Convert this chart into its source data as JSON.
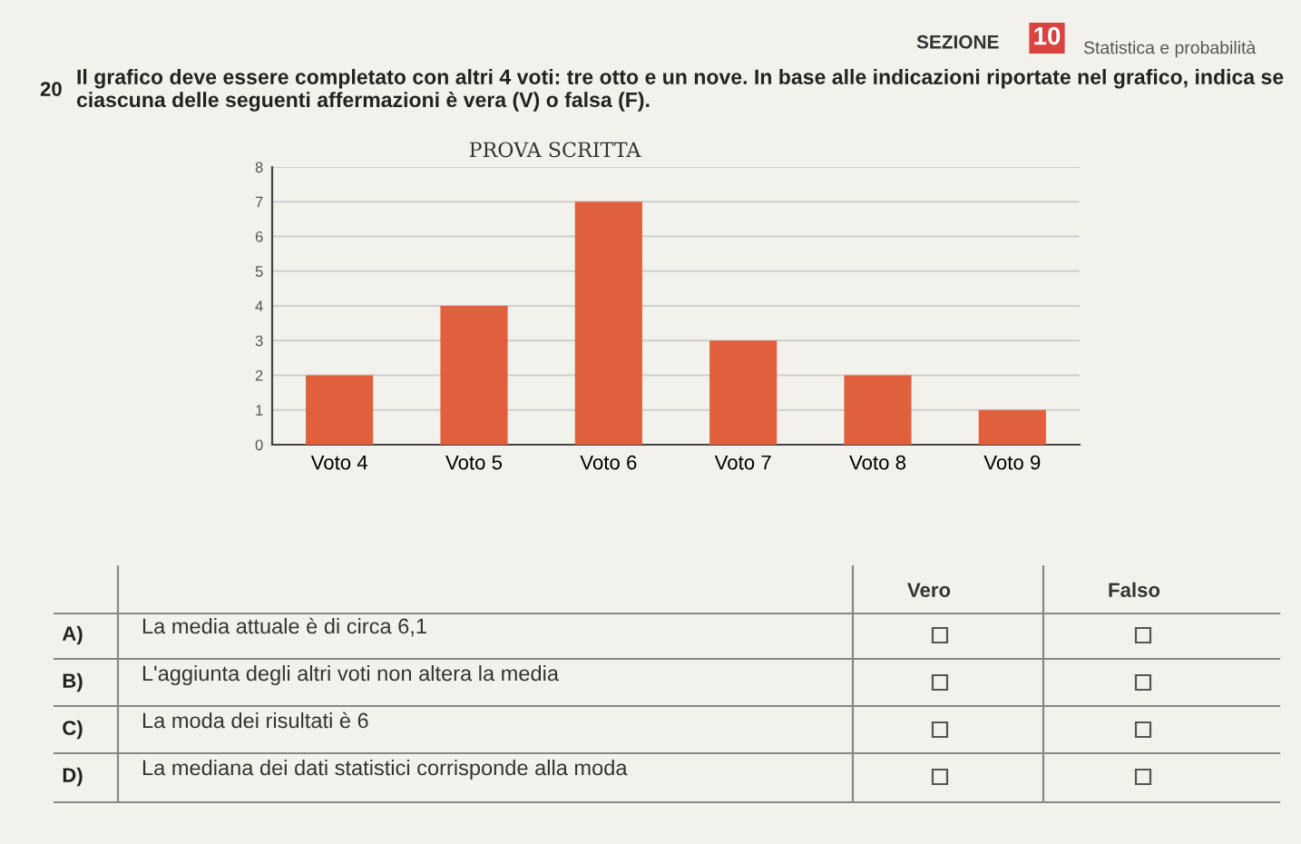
{
  "chart_data": {
    "type": "bar",
    "title": "PROVA SCRITTA",
    "categories": [
      "Voto 4",
      "Voto 5",
      "Voto 6",
      "Voto 7",
      "Voto 8",
      "Voto 9"
    ],
    "values": [
      2,
      4,
      7,
      3,
      2,
      1
    ],
    "color": "#e0603d",
    "ylim": [
      0,
      8
    ],
    "yticks": [
      0,
      1,
      2,
      3,
      4,
      5,
      6,
      7,
      8
    ],
    "grid": "y",
    "annotations": [
      "SEZIONE",
      "10",
      "Statistica e probabilità",
      "20",
      "Il grafico deve essere completato con altri 4 voti: tre otto e un nove. In base alle indicazioni riportate nel grafico, indica se ciascuna delle seguenti affermazioni è vera (V) o falsa (F).",
      "Vero",
      "Falso",
      "A)",
      "La media attuale è di circa 6,1",
      "B)",
      "L'aggiunta degli altri voti non altera la media",
      "C)",
      "La moda dei risultati è 6",
      "D)",
      "La mediana dei dati statistici corrisponde alla moda"
    ]
  }
}
